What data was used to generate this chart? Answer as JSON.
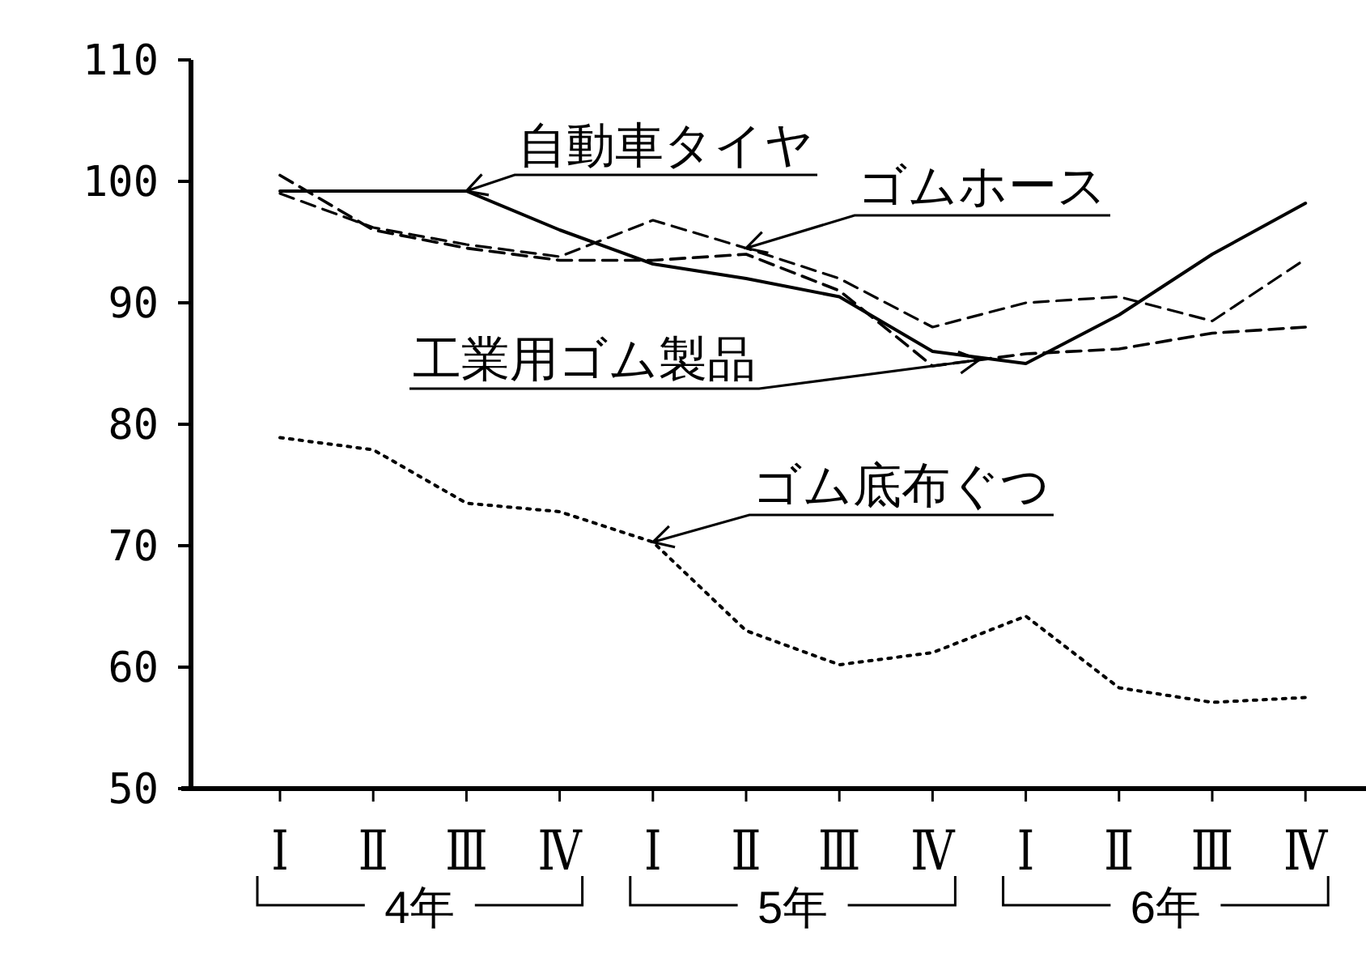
{
  "chart_data": {
    "type": "line",
    "categories": [
      "Ⅰ",
      "Ⅱ",
      "Ⅲ",
      "Ⅳ",
      "Ⅰ",
      "Ⅱ",
      "Ⅲ",
      "Ⅳ",
      "Ⅰ",
      "Ⅱ",
      "Ⅲ",
      "Ⅳ"
    ],
    "annotations": [
      "4年",
      "5年",
      "6年"
    ],
    "ylim": [
      50,
      110
    ],
    "yticks": [
      50,
      60,
      70,
      80,
      90,
      100,
      110
    ],
    "grid": false,
    "marker": "none",
    "series": [
      {
        "name": "自動車タイヤ",
        "color": "#000000",
        "line_style": "solid",
        "values": [
          99.2,
          99.2,
          99.2,
          96,
          93.2,
          92,
          90.5,
          86,
          85,
          89,
          94,
          98.2
        ]
      },
      {
        "name": "ゴムホース",
        "color": "#000000",
        "line_style": "dashed",
        "values": [
          99,
          96.2,
          94.8,
          93.8,
          96.8,
          94.5,
          92,
          88,
          90,
          90.5,
          88.5,
          93.6
        ]
      },
      {
        "name": "工業用ゴム製品",
        "color": "#000000",
        "line_style": "dashed",
        "values": [
          100.5,
          96,
          94.5,
          93.5,
          93.5,
          94,
          91,
          84.8,
          85.8,
          86.2,
          87.5,
          88
        ]
      },
      {
        "name": "ゴム底布ぐつ",
        "color": "#000000",
        "line_style": "dotted",
        "values": [
          78.9,
          77.9,
          73.5,
          72.8,
          70.3,
          63,
          60.2,
          61.2,
          64.2,
          58.3,
          57.1,
          57.5
        ]
      }
    ]
  }
}
